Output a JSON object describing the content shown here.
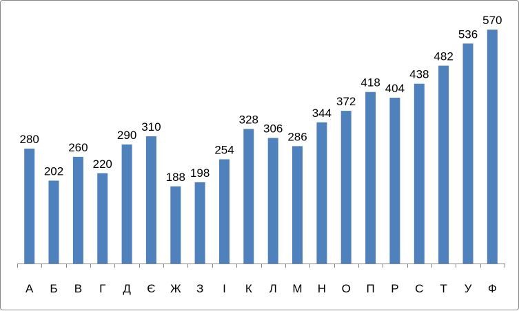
{
  "chart_data": {
    "type": "bar",
    "title": "",
    "xlabel": "",
    "ylabel": "",
    "categories": [
      "А",
      "Б",
      "В",
      "Г",
      "Д",
      "Є",
      "Ж",
      "З",
      "І",
      "К",
      "Л",
      "М",
      "Н",
      "О",
      "П",
      "Р",
      "С",
      "Т",
      "У",
      "Ф"
    ],
    "values": [
      280,
      202,
      260,
      220,
      290,
      310,
      188,
      198,
      254,
      328,
      306,
      286,
      344,
      372,
      418,
      404,
      438,
      482,
      536,
      570
    ],
    "ylim": [
      0,
      570
    ],
    "grid": false,
    "legend": "none",
    "colors": {
      "bar": "#4F81BD",
      "axis": "#868686",
      "frame": "#868686",
      "text": "#000000"
    }
  }
}
